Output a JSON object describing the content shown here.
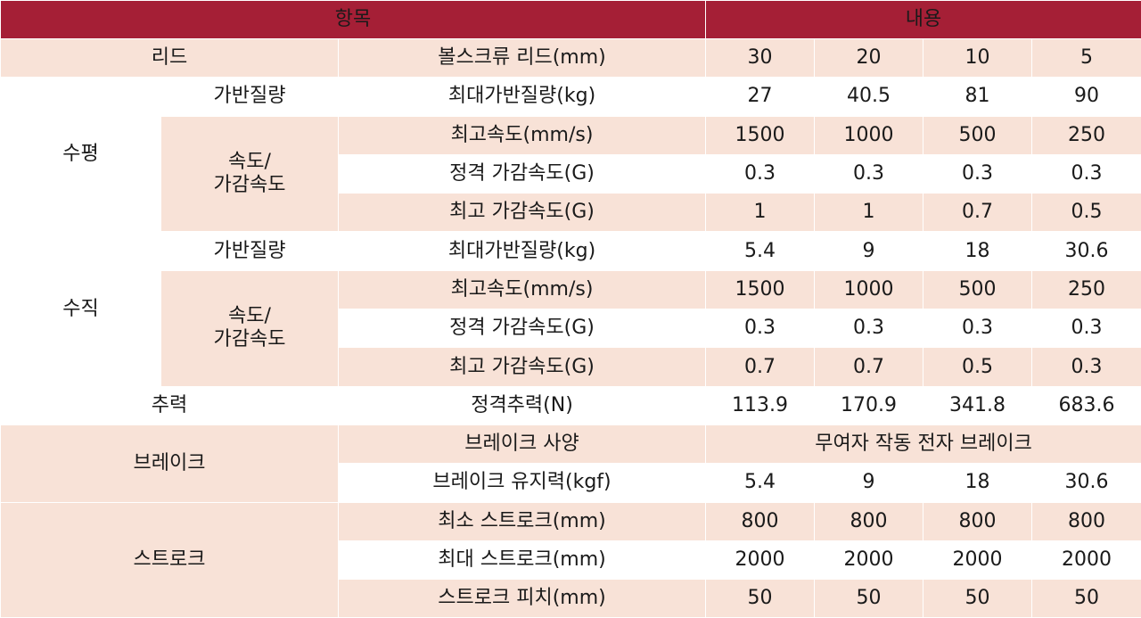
{
  "header": {
    "item": "항목",
    "content": "내용"
  },
  "lead": {
    "label": "리드",
    "sub": "볼스크류 리드(mm)",
    "values": [
      "30",
      "20",
      "10",
      "5"
    ]
  },
  "horizontal": {
    "label": "수평",
    "payload_group": "가반질량",
    "max_payload": {
      "label": "최대가반질량(kg)",
      "values": [
        "27",
        "40.5",
        "81",
        "90"
      ]
    },
    "speed_group": "속도/\n가감속도",
    "max_speed": {
      "label": "최고속도(mm/s)",
      "values": [
        "1500",
        "1000",
        "500",
        "250"
      ]
    },
    "rated_accel": {
      "label": "정격 가감속도(G)",
      "values": [
        "0.3",
        "0.3",
        "0.3",
        "0.3"
      ]
    },
    "max_accel": {
      "label": "최고 가감속도(G)",
      "values": [
        "1",
        "1",
        "0.7",
        "0.5"
      ]
    }
  },
  "vertical": {
    "label": "수직",
    "payload_group": "가반질량",
    "max_payload": {
      "label": "최대가반질량(kg)",
      "values": [
        "5.4",
        "9",
        "18",
        "30.6"
      ]
    },
    "speed_group": "속도/\n가감속도",
    "max_speed": {
      "label": "최고속도(mm/s)",
      "values": [
        "1500",
        "1000",
        "500",
        "250"
      ]
    },
    "rated_accel": {
      "label": "정격 가감속도(G)",
      "values": [
        "0.3",
        "0.3",
        "0.3",
        "0.3"
      ]
    },
    "max_accel": {
      "label": "최고 가감속도(G)",
      "values": [
        "0.7",
        "0.7",
        "0.5",
        "0.3"
      ]
    }
  },
  "thrust": {
    "label": "추력",
    "sub": "정격추력(N)",
    "values": [
      "113.9",
      "170.9",
      "341.8",
      "683.6"
    ]
  },
  "brake": {
    "label": "브레이크",
    "spec": {
      "label": "브레이크 사양",
      "value": "무여자 작동 전자 브레이크"
    },
    "holding": {
      "label": "브레이크 유지력(kgf)",
      "values": [
        "5.4",
        "9",
        "18",
        "30.6"
      ]
    }
  },
  "stroke": {
    "label": "스트로크",
    "min": {
      "label": "최소 스트로크(mm)",
      "values": [
        "800",
        "800",
        "800",
        "800"
      ]
    },
    "max": {
      "label": "최대 스트로크(mm)",
      "values": [
        "2000",
        "2000",
        "2000",
        "2000"
      ]
    },
    "pitch": {
      "label": "스트로크 피치(mm)",
      "values": [
        "50",
        "50",
        "50",
        "50"
      ]
    }
  }
}
